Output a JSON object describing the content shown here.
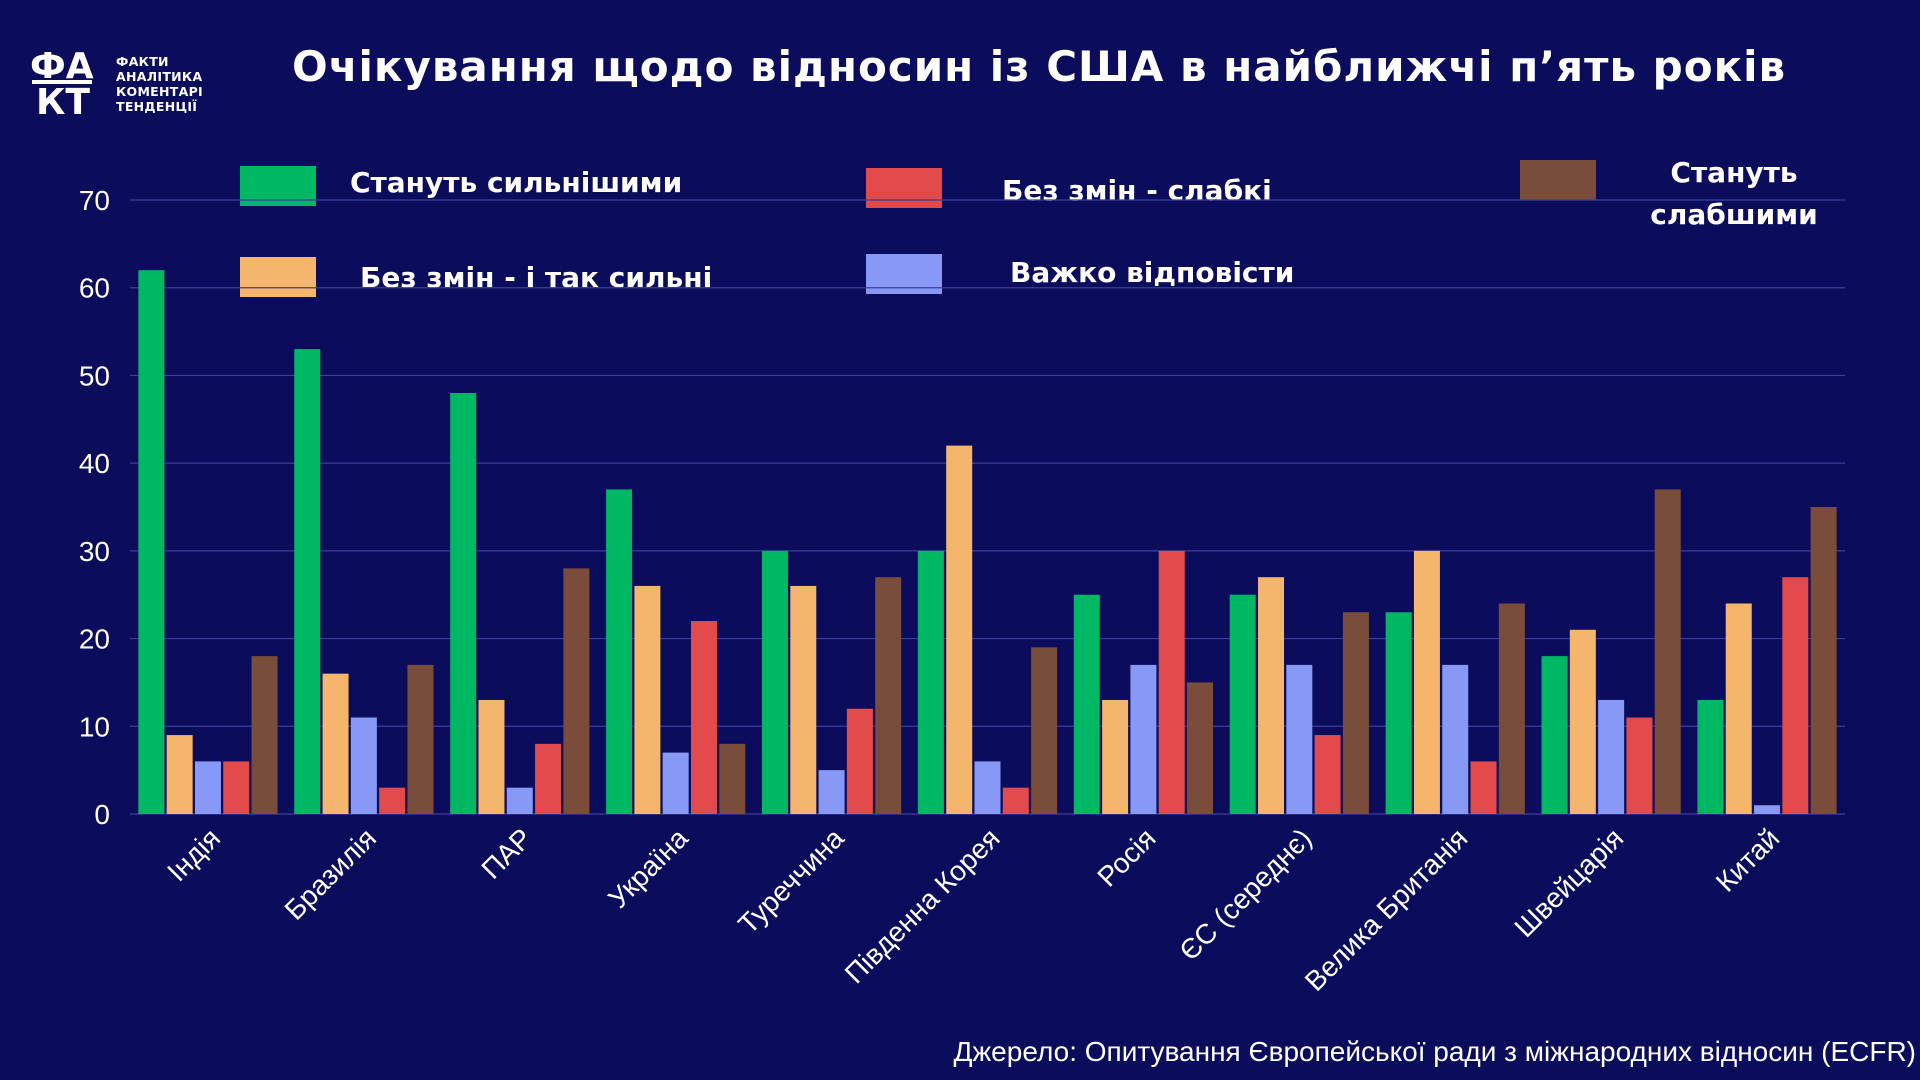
{
  "logo": {
    "mark_top": "ФА",
    "mark_bottom": "КТ",
    "words": [
      "ФАКТИ",
      "АНАЛІТИКА",
      "КОМЕНТАРІ",
      "ТЕНДЕНЦІЇ"
    ]
  },
  "source": "Джерело: Опитування Європейської ради з міжнародних відносин (ECFR)",
  "chart_data": {
    "type": "bar",
    "title": "Очікування щодо відносин із США в найближчі п’ять років",
    "xlabel": "",
    "ylabel": "",
    "ylim": [
      0,
      70
    ],
    "yticks": [
      0,
      10,
      20,
      30,
      40,
      50,
      60,
      70
    ],
    "grid": true,
    "legend_position": "top",
    "categories": [
      "Індія",
      "Бразилія",
      "ПАР",
      "Україна",
      "Туреччина",
      "Південна Корея",
      "Росія",
      "ЄС (середнє)",
      "Велика Британія",
      "Швейцарія",
      "Китай"
    ],
    "series": [
      {
        "name": "Стануть сильнішими",
        "color": "#00b864",
        "values": [
          62,
          53,
          48,
          37,
          30,
          30,
          25,
          25,
          23,
          18,
          13
        ]
      },
      {
        "name": "Без змін - і так сильні",
        "color": "#f4b56d",
        "values": [
          9,
          16,
          13,
          26,
          26,
          42,
          13,
          27,
          30,
          21,
          24
        ]
      },
      {
        "name": "Важко відповісти",
        "color": "#8799f5",
        "values": [
          6,
          11,
          3,
          7,
          5,
          6,
          17,
          17,
          17,
          13,
          1
        ]
      },
      {
        "name": "Без змін - слабкі",
        "color": "#e34a4c",
        "values": [
          6,
          3,
          8,
          22,
          12,
          3,
          30,
          9,
          6,
          11,
          27
        ]
      },
      {
        "name": "Стануть слабшими",
        "color": "#7a4d3b",
        "values": [
          18,
          17,
          28,
          8,
          27,
          19,
          15,
          23,
          24,
          37,
          35
        ]
      }
    ]
  }
}
